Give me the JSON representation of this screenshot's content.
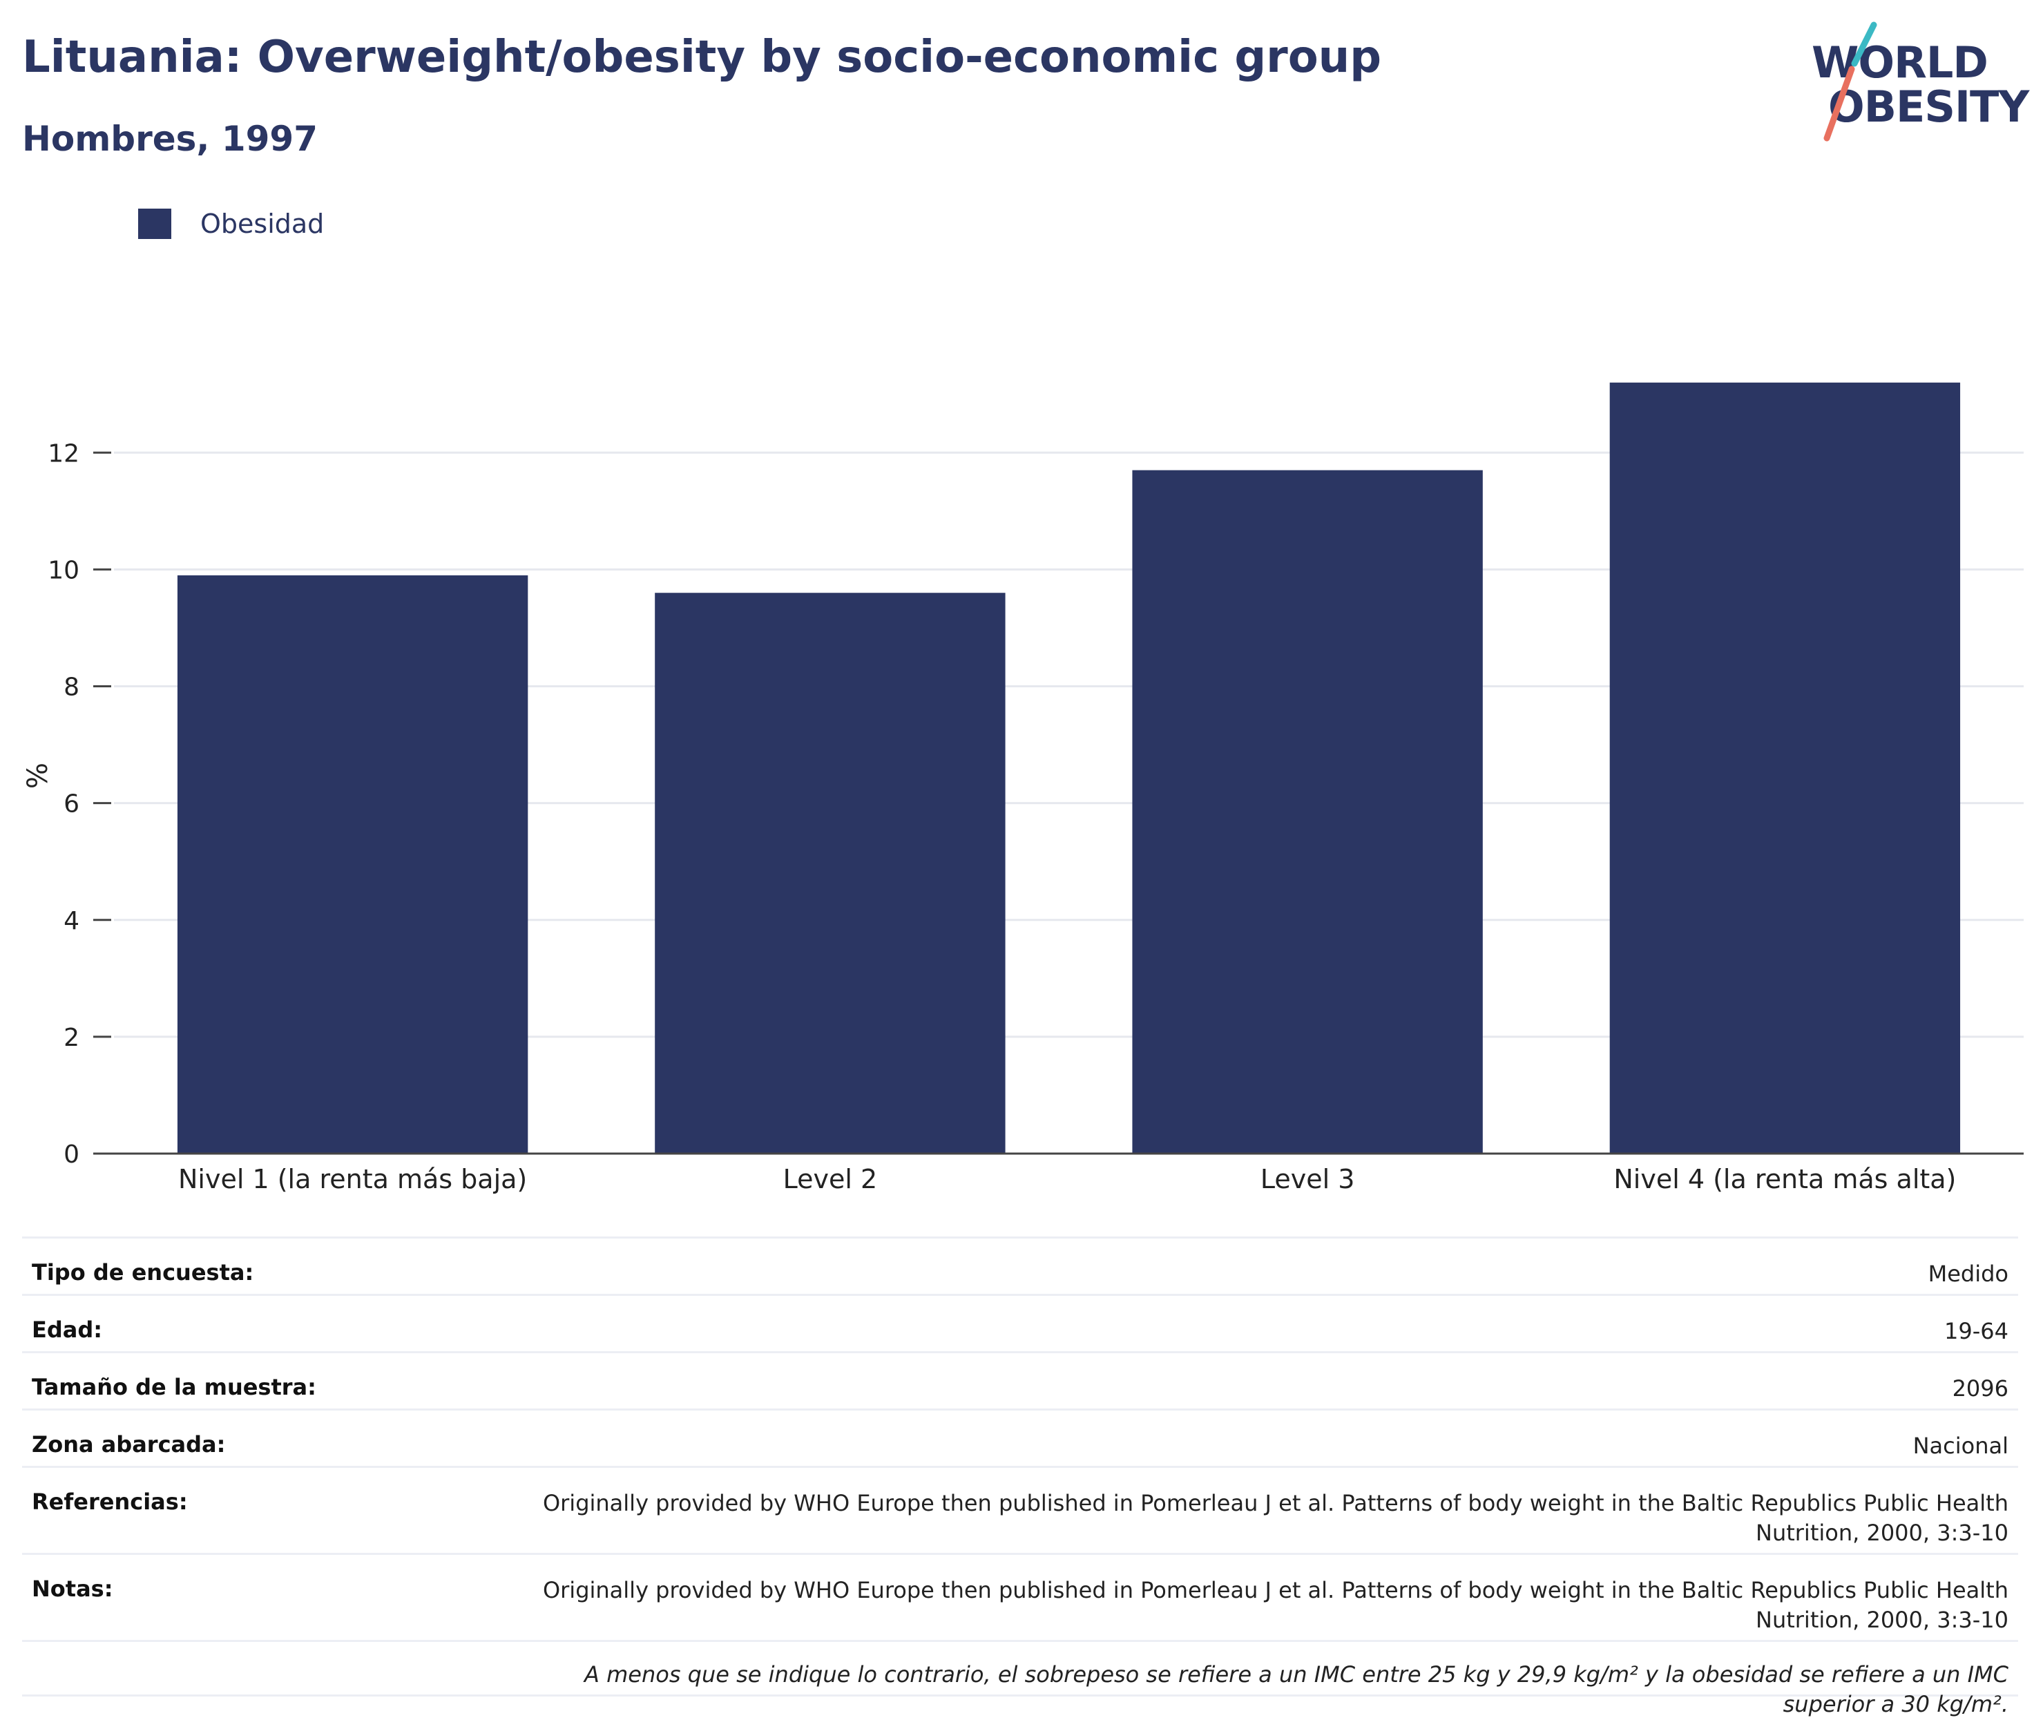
{
  "header": {
    "title": "Lituania: Overweight/obesity by socio-economic group",
    "subtitle": "Hombres, 1997"
  },
  "logo": {
    "line1": "WORLD",
    "line2": "OBESITY",
    "colors": {
      "text": "#2b3663",
      "slash_top": "#3bb9c4",
      "slash_bottom": "#e8705f"
    }
  },
  "colors": {
    "bar": "#2b3663",
    "grid": "#e6e8ee",
    "axis": "#444444",
    "text": "#2b3663"
  },
  "chart_data": {
    "type": "bar",
    "title": "Lituania: Overweight/obesity by socio-economic group",
    "subtitle": "Hombres, 1997",
    "categories": [
      "Nivel 1 (la renta más baja)",
      "Level 2",
      "Level 3",
      "Nivel 4 (la renta más alta)"
    ],
    "series": [
      {
        "name": "Obesidad",
        "values": [
          9.9,
          9.6,
          11.7,
          13.2
        ]
      }
    ],
    "xlabel": "",
    "ylabel": "%",
    "ylim": [
      0,
      13.6
    ],
    "yticks": [
      "0",
      "2",
      "4",
      "6",
      "8",
      "10",
      "12"
    ],
    "grid": true,
    "legend": "top-left"
  },
  "info": {
    "rows": [
      {
        "label": "Tipo de encuesta:",
        "value": "Medido"
      },
      {
        "label": "Edad:",
        "value": "19-64"
      },
      {
        "label": "Tamaño de la muestra:",
        "value": "2096"
      },
      {
        "label": "Zona abarcada:",
        "value": "Nacional"
      },
      {
        "label": "Referencias:",
        "value": "Originally provided by WHO Europe then published in Pomerleau J et al. Patterns of body weight in the Baltic Republics Public Health Nutrition, 2000, 3:3-10"
      },
      {
        "label": "Notas:",
        "value": "Originally provided by WHO Europe then published in Pomerleau J et al. Patterns of body weight in the Baltic Republics Public Health Nutrition, 2000, 3:3-10"
      }
    ],
    "footnote": "A menos que se indique lo contrario, el sobrepeso se refiere a un IMC entre 25 kg y 29,9 kg/m² y la obesidad se refiere a un IMC superior a 30 kg/m²."
  }
}
